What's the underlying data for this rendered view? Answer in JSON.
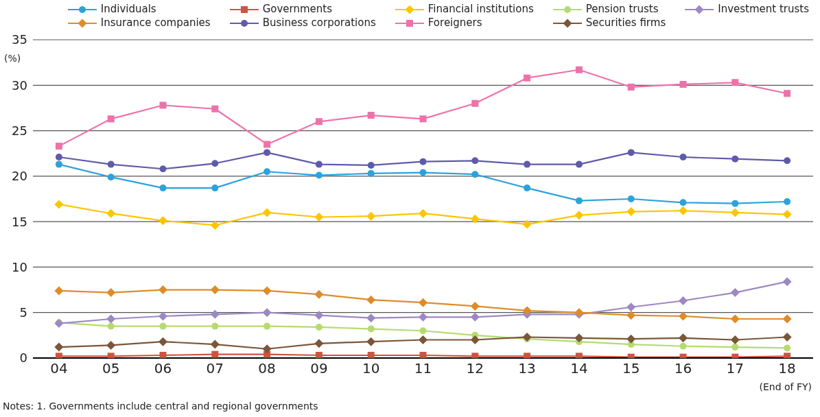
{
  "chart_data": {
    "type": "line",
    "categories": [
      "04",
      "05",
      "06",
      "07",
      "08",
      "09",
      "10",
      "11",
      "12",
      "13",
      "14",
      "15",
      "16",
      "17",
      "18"
    ],
    "series": [
      {
        "name": "Individuals",
        "color": "#2ca2dc",
        "marker": "circle",
        "values": [
          21.3,
          19.9,
          18.7,
          18.7,
          20.5,
          20.1,
          20.3,
          20.4,
          20.2,
          18.7,
          17.3,
          17.5,
          17.1,
          17.0,
          17.2
        ]
      },
      {
        "name": "Governments",
        "color": "#cf5440",
        "marker": "square",
        "values": [
          0.2,
          0.2,
          0.3,
          0.4,
          0.4,
          0.3,
          0.3,
          0.3,
          0.2,
          0.2,
          0.2,
          0.1,
          0.1,
          0.1,
          0.2
        ]
      },
      {
        "name": "Financial institutions",
        "color": "#fbc600",
        "marker": "diamond",
        "values": [
          16.9,
          15.9,
          15.1,
          14.6,
          16.0,
          15.5,
          15.6,
          15.9,
          15.3,
          14.7,
          15.7,
          16.1,
          16.2,
          16.0,
          15.8
        ]
      },
      {
        "name": "Pension trusts",
        "color": "#b5db6e",
        "marker": "circle",
        "values": [
          3.9,
          3.5,
          3.5,
          3.5,
          3.5,
          3.4,
          3.2,
          3.0,
          2.5,
          2.1,
          1.8,
          1.5,
          1.3,
          1.2,
          1.1
        ]
      },
      {
        "name": "Investment trusts",
        "color": "#9d88c3",
        "marker": "diamond",
        "values": [
          3.8,
          4.3,
          4.6,
          4.8,
          5.0,
          4.7,
          4.4,
          4.5,
          4.5,
          4.8,
          4.8,
          5.6,
          6.3,
          7.2,
          8.4
        ]
      },
      {
        "name": "Insurance companies",
        "color": "#de8c2a",
        "marker": "diamond",
        "values": [
          7.4,
          7.2,
          7.5,
          7.5,
          7.4,
          7.0,
          6.4,
          6.1,
          5.7,
          5.2,
          5.0,
          4.7,
          4.6,
          4.3,
          4.3
        ]
      },
      {
        "name": "Business corporations",
        "color": "#5f5aaa",
        "marker": "circle",
        "values": [
          22.1,
          21.3,
          20.8,
          21.4,
          22.6,
          21.3,
          21.2,
          21.6,
          21.7,
          21.3,
          21.3,
          22.6,
          22.1,
          21.9,
          21.7
        ]
      },
      {
        "name": "Foreigners",
        "color": "#ee72aa",
        "marker": "square",
        "values": [
          23.3,
          26.3,
          27.8,
          27.4,
          23.5,
          26.0,
          26.7,
          26.3,
          28.0,
          30.8,
          31.7,
          29.8,
          30.1,
          30.3,
          29.1
        ]
      },
      {
        "name": "Securities firms",
        "color": "#7b5638",
        "marker": "diamond",
        "values": [
          1.2,
          1.4,
          1.8,
          1.5,
          1.0,
          1.6,
          1.8,
          2.0,
          2.0,
          2.3,
          2.2,
          2.1,
          2.2,
          2.0,
          2.3
        ]
      }
    ],
    "ylabel": "(%)",
    "xlabel": "(End of FY)",
    "ylim": [
      0,
      35
    ],
    "yticks": [
      0,
      5,
      10,
      15,
      20,
      25,
      30,
      35
    ],
    "grid": "y",
    "legend": "top",
    "annotations": [
      "Notes: 1. Governments include central and regional governments"
    ]
  }
}
